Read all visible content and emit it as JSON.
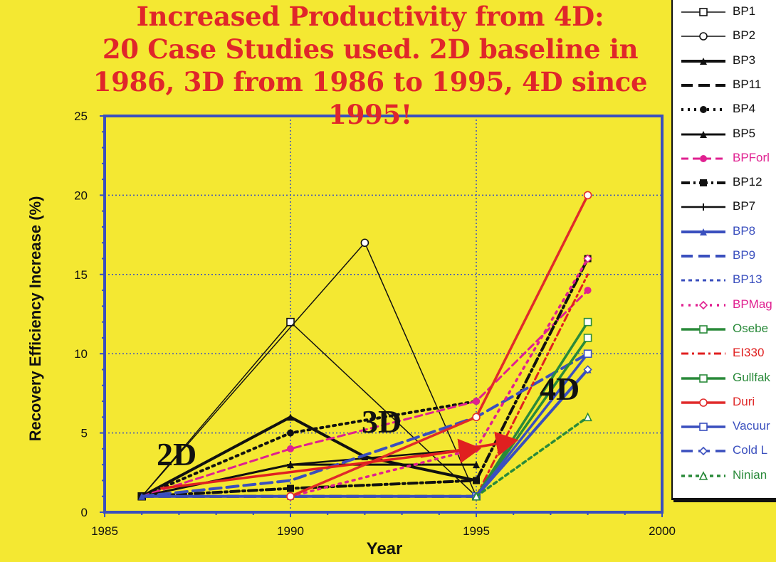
{
  "title_lines": [
    "Increased Productivity from 4D:",
    "20 Case Studies used. 2D baseline in",
    "1986, 3D from 1986 to 1995, 4D since",
    "1995!"
  ],
  "annotations": {
    "phase_2d": "2D",
    "phase_3d": "3D",
    "phase_4d": "4D"
  },
  "chart_data": {
    "type": "line",
    "title": "Increased Productivity from 4D: 20 Case Studies used. 2D baseline in 1986, 3D from 1986 to 1995, 4D since 1995!",
    "xlabel": "Year",
    "ylabel": "Recovery Efficiency Increase (%)",
    "xlim": [
      1985,
      2000
    ],
    "ylim": [
      0,
      25
    ],
    "x_ticks": [
      "1985",
      "1990",
      "1995",
      "2000"
    ],
    "y_ticks": [
      "0",
      "5",
      "10",
      "15",
      "20",
      "25"
    ],
    "grid": true,
    "legend_position": "right",
    "series": [
      {
        "name": "BP1",
        "color": "#111111",
        "dash": "",
        "width": 1.5,
        "marker": "square-open",
        "points": [
          [
            1986,
            1
          ],
          [
            1990,
            12
          ],
          [
            1995,
            1
          ]
        ]
      },
      {
        "name": "BP2",
        "color": "#111111",
        "dash": "",
        "width": 1.5,
        "marker": "circle-open",
        "points": [
          [
            1986,
            1
          ],
          [
            1992,
            17
          ],
          [
            1995,
            1
          ]
        ]
      },
      {
        "name": "BP3",
        "color": "#111111",
        "dash": "",
        "width": 4,
        "marker": "triangle",
        "points": [
          [
            1986,
            1
          ],
          [
            1990,
            6
          ],
          [
            1992,
            3.5
          ],
          [
            1995,
            2
          ]
        ]
      },
      {
        "name": "BP11",
        "color": "#111111",
        "dash": "16,8",
        "width": 4,
        "marker": "none",
        "points": [
          [
            1986,
            1
          ],
          [
            1990,
            1
          ],
          [
            1995,
            1
          ]
        ]
      },
      {
        "name": "BP4",
        "color": "#111111",
        "dash": "3,6",
        "width": 4,
        "marker": "circle",
        "points": [
          [
            1986,
            1
          ],
          [
            1990,
            5
          ],
          [
            1995,
            7
          ]
        ]
      },
      {
        "name": "BP5",
        "color": "#111111",
        "dash": "",
        "width": 3,
        "marker": "triangle",
        "points": [
          [
            1986,
            1
          ],
          [
            1990,
            3
          ],
          [
            1995,
            3
          ]
        ]
      },
      {
        "name": "BPForties",
        "color": "#e02090",
        "dash": "10,6",
        "width": 3,
        "marker": "circle",
        "points": [
          [
            1986,
            1
          ],
          [
            1990,
            4
          ],
          [
            1995,
            7
          ],
          [
            1998,
            14
          ]
        ]
      },
      {
        "name": "BP12",
        "color": "#111111",
        "dash": "12,5,3,5",
        "width": 4,
        "marker": "square",
        "points": [
          [
            1986,
            1
          ],
          [
            1990,
            1.5
          ],
          [
            1995,
            2
          ],
          [
            1998,
            16
          ]
        ]
      },
      {
        "name": "BP7",
        "color": "#111111",
        "dash": "",
        "width": 2.5,
        "marker": "cross",
        "points": [
          [
            1986,
            1
          ],
          [
            1990,
            3
          ],
          [
            1995,
            4
          ]
        ]
      },
      {
        "name": "BP8",
        "color": "#3a4fbe",
        "dash": "",
        "width": 4,
        "marker": "triangle",
        "points": [
          [
            1986,
            1
          ],
          [
            1990,
            1
          ],
          [
            1995,
            1
          ],
          [
            1998,
            9
          ]
        ]
      },
      {
        "name": "BP9",
        "color": "#3a4fbe",
        "dash": "16,8",
        "width": 4,
        "marker": "none",
        "points": [
          [
            1986,
            1
          ],
          [
            1990,
            2
          ],
          [
            1995,
            6
          ],
          [
            1998,
            10
          ]
        ]
      },
      {
        "name": "BP13",
        "color": "#3a4fbe",
        "dash": "5,5",
        "width": 3,
        "marker": "none",
        "points": [
          [
            1986,
            1
          ],
          [
            1990,
            1
          ],
          [
            1995,
            1
          ],
          [
            1998,
            11
          ]
        ]
      },
      {
        "name": "BPMagnus",
        "color": "#e02090",
        "dash": "3,7",
        "width": 3.5,
        "marker": "diamond-open",
        "points": [
          [
            1990,
            1
          ],
          [
            1995,
            4
          ],
          [
            1998,
            16
          ]
        ]
      },
      {
        "name": "Oseberg",
        "color": "#2a8a3a",
        "dash": "",
        "width": 3.5,
        "marker": "square-open",
        "points": [
          [
            1995,
            1
          ],
          [
            1998,
            11
          ]
        ]
      },
      {
        "name": "EI330",
        "color": "#e02020",
        "dash": "10,5,3,5",
        "width": 3,
        "marker": "none",
        "points": [
          [
            1995,
            1
          ],
          [
            1998,
            15
          ]
        ]
      },
      {
        "name": "Gullfaks",
        "color": "#2a8a3a",
        "dash": "",
        "width": 3.5,
        "marker": "square-open",
        "points": [
          [
            1995,
            1
          ],
          [
            1998,
            12
          ]
        ]
      },
      {
        "name": "Duri",
        "color": "#e02a2a",
        "dash": "",
        "width": 3.5,
        "marker": "circle-open",
        "points": [
          [
            1990,
            1
          ],
          [
            1995,
            6
          ],
          [
            1998,
            20
          ]
        ]
      },
      {
        "name": "Vacuum",
        "color": "#3a4fbe",
        "dash": "",
        "width": 3.5,
        "marker": "square-open",
        "points": [
          [
            1995,
            1
          ],
          [
            1998,
            10
          ]
        ]
      },
      {
        "name": "Cold Lake",
        "color": "#3a4fbe",
        "dash": "16,8",
        "width": 3.5,
        "marker": "diamond-open",
        "points": [
          [
            1995,
            1
          ],
          [
            1998,
            9
          ]
        ]
      },
      {
        "name": "Ninian",
        "color": "#2a8a3a",
        "dash": "5,5",
        "width": 3.5,
        "marker": "triangle-open",
        "points": [
          [
            1995,
            1
          ],
          [
            1998,
            6
          ]
        ]
      }
    ],
    "arrows": [
      {
        "from": [
          1986.5,
          1.5
        ],
        "to": [
          1995,
          4
        ],
        "color": "#e02020"
      },
      {
        "from": [
          1993.5,
          3.5
        ],
        "to": [
          1996,
          4.5
        ],
        "color": "#e02020"
      }
    ],
    "legend_labels": [
      "BP1",
      "BP2",
      "BP3",
      "BP11",
      "BP4",
      "BP5",
      "BPForl",
      "BP12",
      "BP7",
      "BP8",
      "BP9",
      "BP13",
      "BPMag",
      "Osebe",
      "EI330",
      "Gullfak",
      "Duri",
      "Vacuur",
      "Cold L",
      "Ninian"
    ],
    "legend_colors": [
      "#111111",
      "#111111",
      "#111111",
      "#111111",
      "#111111",
      "#111111",
      "#e02090",
      "#111111",
      "#111111",
      "#3a4fbe",
      "#3a4fbe",
      "#3a4fbe",
      "#e02090",
      "#2a8a3a",
      "#e02020",
      "#2a8a3a",
      "#e02a2a",
      "#3a4fbe",
      "#3a4fbe",
      "#2a8a3a"
    ]
  }
}
